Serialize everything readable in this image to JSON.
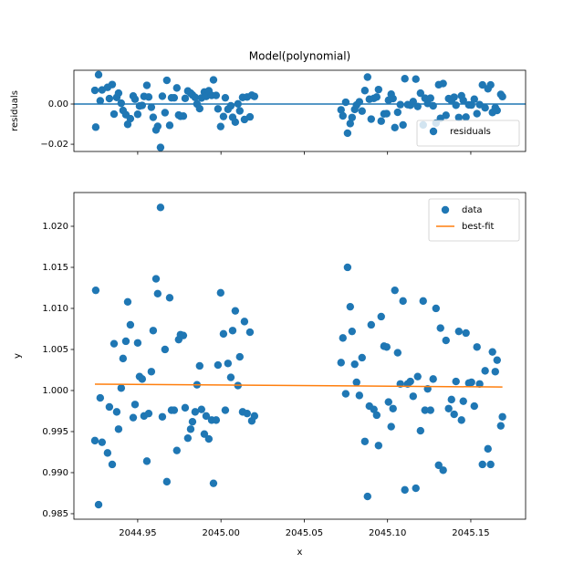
{
  "chart_data": [
    {
      "type": "scatter",
      "title": "Model(polynomial)",
      "ylabel": "residuals",
      "xlim": [
        2044.9117,
        2045.1829
      ],
      "ylim": [
        -0.0236,
        0.0168
      ],
      "yticks": [
        {
          "value": -0.02,
          "label": "−0.02"
        },
        {
          "value": 0,
          "label": "0.00"
        }
      ],
      "hline": 0,
      "hline_color": "#1f77b4",
      "legend": "lower right",
      "series": [
        {
          "name": "residuals",
          "color": "#1f77b4",
          "type": "scatter",
          "x": [
            2044.9243,
            2044.9248,
            2044.9265,
            2044.9275,
            2044.9286,
            2044.9319,
            2044.933,
            2044.9347,
            2044.9358,
            2044.9374,
            2044.9385,
            2044.9401,
            2044.9412,
            2044.9429,
            2044.944,
            2044.9456,
            2044.9473,
            2044.9484,
            2044.95,
            2044.9511,
            2044.9527,
            2044.9538,
            2044.9555,
            2044.9566,
            2044.9582,
            2044.9593,
            2044.961,
            2044.962,
            2044.9637,
            2044.9648,
            2044.9664,
            2044.9675,
            2044.9692,
            2044.9703,
            2044.9719,
            2044.9735,
            2044.9746,
            2044.9757,
            2044.9774,
            2044.9785,
            2044.9801,
            2044.9818,
            2044.9829,
            2044.9845,
            2044.9856,
            2044.9872,
            2044.9883,
            2044.99,
            2044.9911,
            2044.9927,
            2044.9944,
            2044.9955,
            2044.9971,
            2044.9982,
            2044.9998,
            2045.0015,
            2045.0026,
            2045.0042,
            2045.0059,
            2045.007,
            2045.0086,
            2045.0102,
            2045.0113,
            2045.013,
            2045.0141,
            2045.0157,
            2045.0174,
            2045.0185,
            2045.0201,
            2045.0721,
            2045.0732,
            2045.0749,
            2045.076,
            2045.0776,
            2045.0787,
            2045.0803,
            2045.0814,
            2045.0831,
            2045.0847,
            2045.0864,
            2045.088,
            2045.0891,
            2045.0902,
            2045.0918,
            2045.0935,
            2045.0946,
            2045.0962,
            2045.0979,
            2045.0995,
            2045.1006,
            2045.1022,
            2045.1033,
            2045.1044,
            2045.1061,
            2045.1077,
            2045.1093,
            2045.1104,
            2045.1121,
            2045.1137,
            2045.1154,
            2045.117,
            2045.1181,
            2045.1198,
            2045.1214,
            2045.1225,
            2045.1241,
            2045.1258,
            2045.1274,
            2045.1291,
            2045.1307,
            2045.1318,
            2045.1334,
            2045.1351,
            2045.1367,
            2045.1384,
            2045.14,
            2045.1411,
            2045.1428,
            2045.1444,
            2045.1455,
            2045.1471,
            2045.1488,
            2045.1504,
            2045.1521,
            2045.1537,
            2045.1553,
            2045.157,
            2045.1586,
            2045.1603,
            2045.1619,
            2045.163,
            2045.1647,
            2045.1658,
            2045.168,
            2045.169
          ],
          "values": [
            0.0068,
            -0.0115,
            0.0146,
            0.0016,
            0.007,
            0.0083,
            0.0027,
            0.0097,
            -0.005,
            0.0033,
            0.0054,
            0.0004,
            -0.0032,
            -0.0053,
            -0.0101,
            -0.0073,
            0.004,
            0.0024,
            -0.0051,
            -0.001,
            -0.0007,
            0.0038,
            0.0093,
            0.0035,
            -0.0016,
            -0.0066,
            -0.0129,
            -0.0111,
            -0.0216,
            0.0039,
            -0.0043,
            0.0118,
            -0.0106,
            0.0031,
            0.0031,
            0.008,
            -0.0055,
            -0.0061,
            -0.006,
            0.0028,
            0.0065,
            0.0054,
            0.0045,
            0.0033,
            0.0,
            -0.0023,
            0.003,
            0.006,
            0.0038,
            0.0066,
            0.0043,
            0.012,
            0.0043,
            -0.0024,
            -0.0112,
            -0.0062,
            0.0031,
            -0.0026,
            -0.0009,
            -0.0066,
            -0.009,
            0.0001,
            -0.0034,
            0.0033,
            -0.0077,
            0.0035,
            -0.0064,
            0.0044,
            0.0038,
            -0.0029,
            -0.0059,
            0.0009,
            -0.0145,
            -0.0097,
            -0.0067,
            -0.0027,
            -0.0005,
            0.0011,
            -0.0035,
            0.0067,
            0.0134,
            0.0024,
            -0.0075,
            0.0028,
            0.0035,
            0.0072,
            -0.0085,
            -0.0049,
            -0.0048,
            0.0019,
            0.0049,
            0.0027,
            -0.0117,
            -0.0041,
            -0.0003,
            -0.0104,
            0.0126,
            -0.0003,
            -0.0006,
            0.0012,
            0.0124,
            -0.0012,
            0.0054,
            -0.0104,
            0.0029,
            0.0003,
            0.0029,
            -0.0009,
            -0.0095,
            0.0096,
            -0.0071,
            0.0102,
            -0.0056,
            0.0027,
            0.0016,
            0.0034,
            -0.0006,
            -0.0067,
            0.0041,
            0.0018,
            -0.0065,
            -0.0004,
            -0.0005,
            0.0024,
            -0.0048,
            -0.0003,
            0.0095,
            -0.0019,
            0.0076,
            0.0095,
            -0.0042,
            -0.0018,
            -0.0032,
            0.0048,
            0.0037
          ]
        }
      ]
    },
    {
      "type": "scatter",
      "xlabel": "x",
      "ylabel": "y",
      "xlim": [
        2044.9117,
        2045.1829
      ],
      "ylim": [
        0.98433,
        1.02411
      ],
      "xticks": [
        2044.95,
        {
          "value": 2045,
          "label": "2045.00"
        },
        2045.05,
        {
          "value": 2045.1,
          "label": "2045.10"
        },
        2045.15
      ],
      "yticks": [
        0.985,
        {
          "value": 0.99,
          "label": "0.990"
        },
        0.995,
        {
          "value": 1,
          "label": "1.000"
        },
        1.005,
        {
          "value": 1.01,
          "label": "1.010"
        },
        1.015,
        {
          "value": 1.02,
          "label": "1.020"
        }
      ],
      "legend": "upper right",
      "series": [
        {
          "name": "data",
          "color": "#1f77b4",
          "type": "scatter",
          "x": [
            2044.9243,
            2044.9248,
            2044.9265,
            2044.9275,
            2044.9286,
            2044.9319,
            2044.933,
            2044.9347,
            2044.9358,
            2044.9374,
            2044.9385,
            2044.9401,
            2044.9412,
            2044.9429,
            2044.944,
            2044.9456,
            2044.9473,
            2044.9484,
            2044.95,
            2044.9511,
            2044.9527,
            2044.9538,
            2044.9555,
            2044.9566,
            2044.9582,
            2044.9593,
            2044.961,
            2044.962,
            2044.9637,
            2044.9648,
            2044.9664,
            2044.9675,
            2044.9692,
            2044.9703,
            2044.9719,
            2044.9735,
            2044.9746,
            2044.9757,
            2044.9774,
            2044.9785,
            2044.9801,
            2044.9818,
            2044.9829,
            2044.9845,
            2044.9856,
            2044.9872,
            2044.9883,
            2044.99,
            2044.9911,
            2044.9927,
            2044.9944,
            2044.9955,
            2044.9971,
            2044.9982,
            2044.9998,
            2045.0015,
            2045.0026,
            2045.0042,
            2045.0059,
            2045.007,
            2045.0086,
            2045.0102,
            2045.0113,
            2045.013,
            2045.0141,
            2045.0157,
            2045.0174,
            2045.0185,
            2045.0201,
            2045.0721,
            2045.0732,
            2045.0749,
            2045.076,
            2045.0776,
            2045.0787,
            2045.0803,
            2045.0814,
            2045.0831,
            2045.0847,
            2045.0864,
            2045.088,
            2045.0891,
            2045.0902,
            2045.0918,
            2045.0935,
            2045.0946,
            2045.0962,
            2045.0979,
            2045.0995,
            2045.1006,
            2045.1022,
            2045.1033,
            2045.1044,
            2045.1061,
            2045.1077,
            2045.1093,
            2045.1104,
            2045.1121,
            2045.1137,
            2045.1154,
            2045.117,
            2045.1181,
            2045.1198,
            2045.1214,
            2045.1225,
            2045.1241,
            2045.1258,
            2045.1274,
            2045.1291,
            2045.1307,
            2045.1318,
            2045.1334,
            2045.1351,
            2045.1367,
            2045.1384,
            2045.14,
            2045.1411,
            2045.1428,
            2045.1444,
            2045.1455,
            2045.1471,
            2045.1488,
            2045.1504,
            2045.1521,
            2045.1537,
            2045.1553,
            2045.157,
            2045.1586,
            2045.1603,
            2045.1619,
            2045.163,
            2045.1647,
            2045.1658,
            2045.168,
            2045.169
          ],
          "values": [
            0.9939,
            1.0122,
            0.9861,
            0.9991,
            0.9937,
            0.9924,
            0.998,
            0.991,
            1.0057,
            0.9974,
            0.9953,
            1.0003,
            1.0039,
            1.006,
            1.0108,
            1.008,
            0.9967,
            0.9983,
            1.0058,
            1.0017,
            1.0014,
            0.9969,
            0.9914,
            0.9972,
            1.0023,
            1.0073,
            1.0136,
            1.0118,
            1.0223,
            0.9968,
            1.005,
            0.9889,
            1.0113,
            0.9976,
            0.9976,
            0.9927,
            1.0062,
            1.0068,
            1.0067,
            0.9979,
            0.9942,
            0.9953,
            0.9962,
            0.9974,
            1.0007,
            1.003,
            0.9977,
            0.9947,
            0.9969,
            0.9941,
            0.9964,
            0.9887,
            0.9964,
            1.0031,
            1.0119,
            1.0069,
            0.9976,
            1.0033,
            1.0016,
            1.0073,
            1.0097,
            1.0006,
            1.0041,
            0.9974,
            1.0084,
            0.9972,
            1.0071,
            0.9963,
            0.9969,
            1.0034,
            1.0064,
            0.9996,
            1.015,
            1.0102,
            1.0072,
            1.0032,
            1.001,
            0.9994,
            1.004,
            0.9938,
            0.9871,
            0.9981,
            1.008,
            0.9977,
            0.997,
            0.9933,
            1.009,
            1.0054,
            1.0053,
            0.9986,
            0.9956,
            0.9978,
            1.0122,
            1.0046,
            1.0008,
            1.0109,
            0.9879,
            1.0008,
            1.0011,
            0.9993,
            0.9881,
            1.0017,
            0.9951,
            1.0109,
            0.9976,
            1.0002,
            0.9976,
            1.0014,
            1.01,
            0.9909,
            1.0076,
            0.9903,
            1.0061,
            0.9978,
            0.9989,
            0.9971,
            1.0011,
            1.0072,
            0.9964,
            0.9987,
            1.007,
            1.0009,
            1.001,
            0.9981,
            1.0053,
            1.0008,
            0.991,
            1.0024,
            0.9929,
            0.991,
            1.0047,
            1.0023,
            1.0037,
            0.9957,
            0.9968
          ]
        },
        {
          "name": "best-fit",
          "color": "#ff7f0e",
          "type": "line",
          "x": [
            2044.9243,
            2045.169
          ],
          "values": [
            1.00078,
            1.00043
          ]
        }
      ]
    }
  ]
}
